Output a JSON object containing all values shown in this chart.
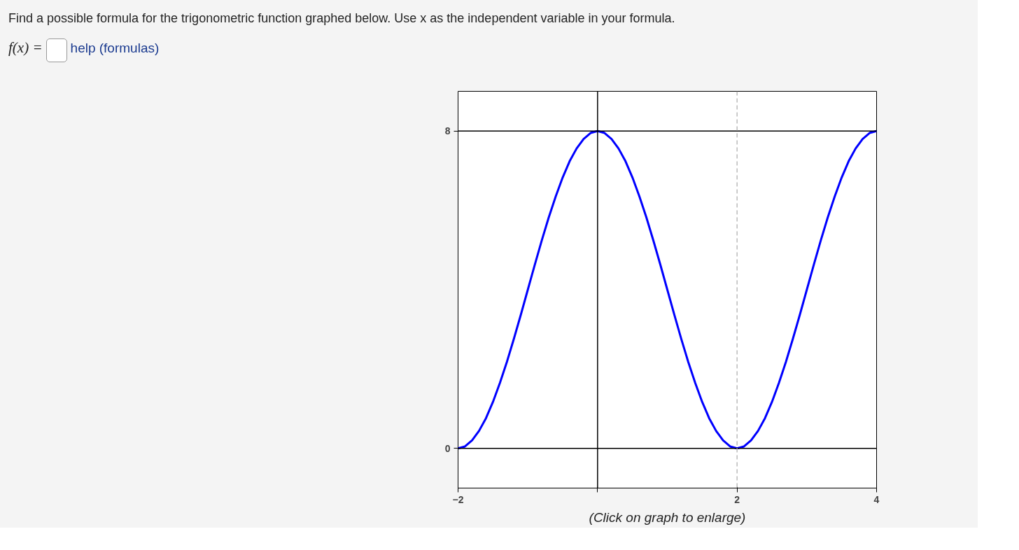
{
  "chart_data": {
    "type": "line",
    "x": [
      -2,
      -1.9,
      -1.8,
      -1.7,
      -1.6,
      -1.5,
      -1.4,
      -1.3,
      -1.2,
      -1.1,
      -1,
      -0.9,
      -0.8,
      -0.7,
      -0.6,
      -0.5,
      -0.4,
      -0.3,
      -0.2,
      -0.1,
      0,
      0.1,
      0.2,
      0.3,
      0.4,
      0.5,
      0.6,
      0.7,
      0.8,
      0.9,
      1,
      1.1,
      1.2,
      1.3,
      1.4,
      1.5,
      1.6,
      1.7,
      1.8,
      1.9,
      2,
      2.1,
      2.2,
      2.3,
      2.4,
      2.5,
      2.6,
      2.7,
      2.8,
      2.9,
      3,
      3.1,
      3.2,
      3.3,
      3.4,
      3.5,
      3.6,
      3.7,
      3.8,
      3.9,
      4
    ],
    "series": [
      {
        "color": "#0000ff",
        "values": [
          0,
          0.05,
          0.2,
          0.44,
          0.76,
          1.17,
          1.65,
          2.18,
          2.76,
          3.37,
          4,
          4.63,
          5.24,
          5.82,
          6.35,
          6.83,
          7.24,
          7.56,
          7.8,
          7.95,
          8,
          7.95,
          7.8,
          7.56,
          7.24,
          6.83,
          6.35,
          5.82,
          5.24,
          4.63,
          4,
          3.37,
          2.76,
          2.18,
          1.65,
          1.17,
          0.76,
          0.44,
          0.2,
          0.05,
          0,
          0.05,
          0.2,
          0.44,
          0.76,
          1.17,
          1.65,
          2.18,
          2.76,
          3.37,
          4,
          4.63,
          5.24,
          5.82,
          6.35,
          6.83,
          7.24,
          7.56,
          7.8,
          7.95,
          8
        ]
      }
    ],
    "xlim": [
      -2,
      4
    ],
    "ylim": [
      -1,
      9
    ],
    "xticks": [
      -2,
      {
        "value": 0,
        "label": null
      },
      2,
      4
    ],
    "yticks": [
      0,
      8
    ],
    "ref_lines": [
      {
        "axis": "x",
        "value": 0,
        "color": "#000000"
      },
      {
        "axis": "y",
        "value": 0,
        "color": "#000000"
      },
      {
        "axis": "y",
        "value": 8,
        "color": "#000000"
      },
      {
        "axis": "x",
        "value": 2,
        "color": "#bbbbbb",
        "line_style": "dashed"
      }
    ],
    "annotations": [
      "Find a possible formula for the trigonometric function graphed below. Use x as the independent variable in your formula.",
      "f(x) =",
      "help (formulas)",
      "(Click on graph to enlarge)"
    ]
  }
}
